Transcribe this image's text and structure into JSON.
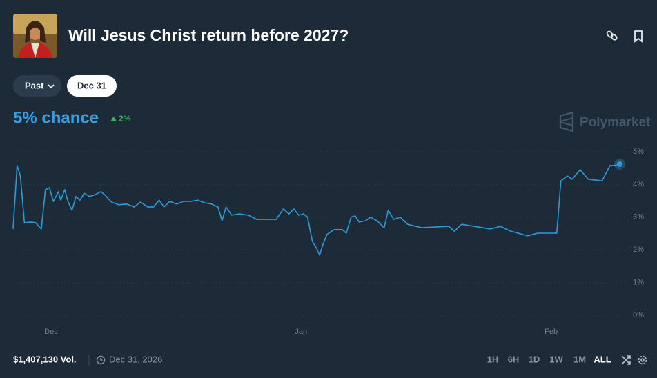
{
  "header": {
    "title": "Will Jesus Christ return before 2027?"
  },
  "filters": {
    "past": "Past",
    "date": "Dec 31"
  },
  "chance": {
    "label": "5% chance",
    "change": "2%"
  },
  "brand": "Polymarket",
  "chart_data": {
    "type": "line",
    "x": [
      -4.7,
      -4.2,
      -3.8,
      -3.3,
      -2.5,
      -1.9,
      -1.2,
      -0.7,
      -0.2,
      0.3,
      0.9,
      1.2,
      1.7,
      2.1,
      2.6,
      3.1,
      3.6,
      4.1,
      4.8,
      5.5,
      6.2,
      6.7,
      7.5,
      8.4,
      9.4,
      10.3,
      11.1,
      12.0,
      12.7,
      13.4,
      14.0,
      14.7,
      15.6,
      16.4,
      17.3,
      18.2,
      19.0,
      19.9,
      20.7,
      21.2,
      21.7,
      22.4,
      23.3,
      24.5,
      25.5,
      27.9,
      28.8,
      29.5,
      30.1,
      30.7,
      31.3,
      31.8,
      32.4,
      32.9,
      33.3,
      33.7,
      34.2,
      35.1,
      36.1,
      36.6,
      37.2,
      37.7,
      38.2,
      39.0,
      39.6,
      40.4,
      41.3,
      41.8,
      42.5,
      43.3,
      44.2,
      45.9,
      49.3,
      50.0,
      50.9,
      54.5,
      55.7,
      57.0,
      59.1,
      60.3,
      62.7,
      63.2,
      64.0,
      64.6,
      65.6,
      66.6,
      68.3,
      69.3,
      69.9,
      70.5
    ],
    "series": [
      {
        "color": "#2e9bd6",
        "values": [
          2.64,
          4.58,
          4.26,
          2.83,
          2.85,
          2.83,
          2.64,
          3.84,
          3.9,
          3.48,
          3.78,
          3.52,
          3.84,
          3.48,
          3.21,
          3.63,
          3.52,
          3.73,
          3.63,
          3.69,
          3.78,
          3.67,
          3.46,
          3.38,
          3.4,
          3.31,
          3.46,
          3.31,
          3.31,
          3.52,
          3.31,
          3.48,
          3.4,
          3.48,
          3.48,
          3.52,
          3.44,
          3.4,
          3.31,
          2.89,
          3.31,
          3.06,
          3.1,
          3.06,
          2.93,
          2.93,
          3.25,
          3.1,
          3.25,
          3.06,
          3.1,
          3.0,
          2.26,
          2.05,
          1.84,
          2.15,
          2.47,
          2.62,
          2.62,
          2.51,
          3.0,
          3.04,
          2.85,
          2.89,
          3.0,
          2.89,
          2.68,
          3.21,
          2.93,
          3.0,
          2.78,
          2.68,
          2.72,
          2.57,
          2.78,
          2.64,
          2.72,
          2.57,
          2.43,
          2.51,
          2.51,
          4.11,
          4.26,
          4.16,
          4.45,
          4.16,
          4.11,
          4.58,
          4.58,
          4.62
        ]
      }
    ],
    "xlim": [
      -4.7,
      71.1
    ],
    "xticks": [
      {
        "value": 0,
        "label": "Dec"
      },
      {
        "value": 31,
        "label": "Jan"
      },
      {
        "value": 62,
        "label": "Feb"
      }
    ],
    "ylim": [
      0,
      5
    ],
    "yticks": [
      {
        "value": 0,
        "label": "0%"
      },
      {
        "value": 1,
        "label": "1%"
      },
      {
        "value": 2,
        "label": "2%"
      },
      {
        "value": 3,
        "label": "3%"
      },
      {
        "value": 4,
        "label": "4%"
      },
      {
        "value": 5,
        "label": "5%"
      }
    ],
    "grid": true
  },
  "footer": {
    "volume": "$1,407,130 Vol.",
    "end_date": "Dec 31, 2026",
    "ranges": [
      "1H",
      "6H",
      "1D",
      "1W",
      "1M",
      "ALL"
    ]
  }
}
